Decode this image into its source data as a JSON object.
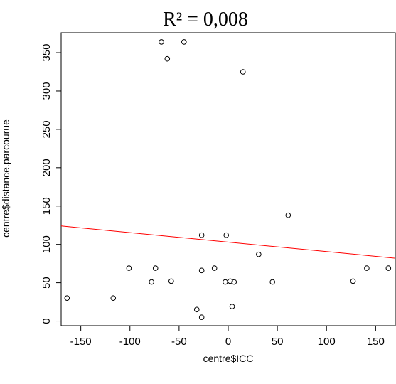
{
  "chart_data": {
    "type": "scatter",
    "title": "R² = 0,008",
    "xlabel": "centre$ICC",
    "ylabel": "centre$distance.parcourue",
    "xlim": [
      -170,
      170
    ],
    "ylim": [
      -6,
      376
    ],
    "x_ticks": [
      -150,
      -100,
      -50,
      0,
      50,
      100,
      150
    ],
    "x_tick_labels": [
      "-150",
      "-100",
      "-50",
      "0",
      "50",
      "100",
      "150"
    ],
    "y_ticks": [
      0,
      50,
      100,
      150,
      200,
      250,
      300,
      350
    ],
    "y_tick_labels": [
      "0",
      "50",
      "100",
      "150",
      "200",
      "250",
      "300",
      "350"
    ],
    "grid": false,
    "colors": {
      "points": "#000000",
      "regression_line": "#ff0000",
      "axes": "#000000"
    },
    "points": [
      {
        "x": -164,
        "y": 30
      },
      {
        "x": -117,
        "y": 30
      },
      {
        "x": -101,
        "y": 69
      },
      {
        "x": -78,
        "y": 51
      },
      {
        "x": -74,
        "y": 69
      },
      {
        "x": -68,
        "y": 364
      },
      {
        "x": -62,
        "y": 342
      },
      {
        "x": -58,
        "y": 52
      },
      {
        "x": -45,
        "y": 364
      },
      {
        "x": -32,
        "y": 15
      },
      {
        "x": -27,
        "y": 112
      },
      {
        "x": -27,
        "y": 66
      },
      {
        "x": -27,
        "y": 5
      },
      {
        "x": -14,
        "y": 69
      },
      {
        "x": -3,
        "y": 51
      },
      {
        "x": -2,
        "y": 112
      },
      {
        "x": 2,
        "y": 52
      },
      {
        "x": 4,
        "y": 19
      },
      {
        "x": 6,
        "y": 51
      },
      {
        "x": 15,
        "y": 325
      },
      {
        "x": 31,
        "y": 87
      },
      {
        "x": 45,
        "y": 51
      },
      {
        "x": 61,
        "y": 138
      },
      {
        "x": 127,
        "y": 52
      },
      {
        "x": 141,
        "y": 69
      },
      {
        "x": 163,
        "y": 69
      }
    ],
    "regression_line": {
      "x": [
        -170,
        170
      ],
      "y": [
        124,
        82
      ]
    }
  }
}
